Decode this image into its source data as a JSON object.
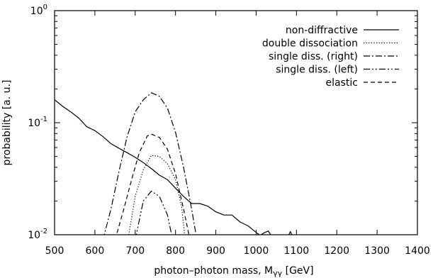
{
  "chart_data": {
    "type": "line",
    "title": "",
    "xlabel": "photon–photon mass, M",
    "xlabel_subscript": "γγ",
    "xlabel_unit": " [GeV]",
    "ylabel": "probability [a. u.]",
    "xlim": [
      500,
      1400
    ],
    "ylim": [
      0.01,
      1
    ],
    "yscale": "log",
    "grid": false,
    "legend_position": "top-right",
    "x_ticks": [
      500,
      600,
      700,
      800,
      900,
      1000,
      1100,
      1200,
      1300,
      1400
    ],
    "x_tick_labels": [
      "500",
      "600",
      "700",
      "800",
      "900",
      "1000",
      "1100",
      "1200",
      "1300",
      "1400"
    ],
    "y_ticks": [
      {
        "value": 1,
        "base": "10",
        "exp": "0"
      },
      {
        "value": 0.1,
        "base": "10",
        "exp": "-1"
      },
      {
        "value": 0.01,
        "base": "10",
        "exp": "-2"
      }
    ],
    "series": [
      {
        "name": "non-diffractive",
        "dash": "solid",
        "x": [
          500,
          520,
          540,
          560,
          580,
          600,
          620,
          640,
          660,
          680,
          700,
          720,
          740,
          760,
          780,
          800,
          820,
          840,
          860,
          880,
          900,
          920,
          940,
          960,
          980,
          1000,
          1010,
          1020,
          1030,
          1040,
          1050,
          1060,
          1070,
          1080,
          1085,
          1090
        ],
        "y": [
          0.16,
          0.14,
          0.125,
          0.11,
          0.092,
          0.085,
          0.075,
          0.065,
          0.059,
          0.054,
          0.049,
          0.044,
          0.039,
          0.034,
          0.031,
          0.026,
          0.022,
          0.019,
          0.019,
          0.018,
          0.016,
          0.015,
          0.015,
          0.013,
          0.012,
          0.0105,
          0.0099,
          0.0104,
          0.0108,
          0.0095,
          0.0098,
          0.0097,
          0.0095,
          0.0098,
          0.0107,
          0.0096
        ]
      },
      {
        "name": "double dissociation",
        "dash": "dotted",
        "x": [
          682,
          700,
          720,
          740,
          760,
          780,
          800,
          815,
          824
        ],
        "y": [
          0.009,
          0.022,
          0.038,
          0.051,
          0.05,
          0.043,
          0.031,
          0.018,
          0.009
        ]
      },
      {
        "name": "single diss. (right)",
        "dash": "dashdot",
        "x": [
          620,
          640,
          660,
          680,
          700,
          720,
          740,
          760,
          780,
          800,
          820,
          840,
          853
        ],
        "y": [
          0.009,
          0.017,
          0.037,
          0.075,
          0.125,
          0.16,
          0.185,
          0.172,
          0.135,
          0.082,
          0.04,
          0.017,
          0.009
        ]
      },
      {
        "name": "single diss. (left)",
        "dash": "dashdotdot",
        "x": [
          700,
          720,
          740,
          760,
          780,
          793
        ],
        "y": [
          0.009,
          0.02,
          0.0245,
          0.022,
          0.015,
          0.009
        ]
      },
      {
        "name": "elastic",
        "dash": "dashed",
        "x": [
          650,
          670,
          690,
          710,
          730,
          740,
          760,
          780,
          800,
          820,
          836
        ],
        "y": [
          0.009,
          0.016,
          0.03,
          0.054,
          0.076,
          0.079,
          0.074,
          0.058,
          0.035,
          0.017,
          0.009
        ]
      }
    ]
  }
}
